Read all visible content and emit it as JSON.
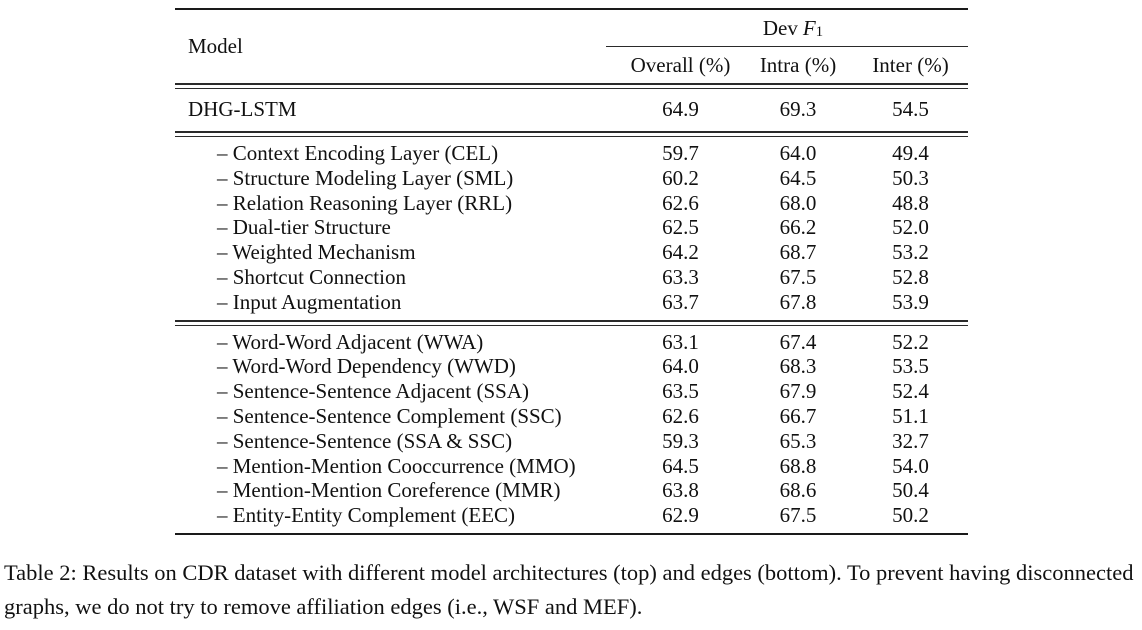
{
  "table": {
    "header": {
      "model_label": "Model",
      "group_label_dev": "Dev",
      "group_label_f": "F",
      "group_label_sub": "1",
      "columns": [
        "Overall (%)",
        "Intra (%)",
        "Inter (%)"
      ]
    },
    "base_rows": [
      {
        "model": "DHG-LSTM",
        "values": [
          "64.9",
          "69.3",
          "54.5"
        ]
      }
    ],
    "architecture_rows": [
      {
        "model": "– Context Encoding Layer (CEL)",
        "values": [
          "59.7",
          "64.0",
          "49.4"
        ]
      },
      {
        "model": "– Structure Modeling Layer (SML)",
        "values": [
          "60.2",
          "64.5",
          "50.3"
        ]
      },
      {
        "model": "– Relation Reasoning Layer (RRL)",
        "values": [
          "62.6",
          "68.0",
          "48.8"
        ]
      },
      {
        "model": "– Dual-tier Structure",
        "values": [
          "62.5",
          "66.2",
          "52.0"
        ]
      },
      {
        "model": "– Weighted Mechanism",
        "values": [
          "64.2",
          "68.7",
          "53.2"
        ]
      },
      {
        "model": "– Shortcut Connection",
        "values": [
          "63.3",
          "67.5",
          "52.8"
        ]
      },
      {
        "model": "– Input Augmentation",
        "values": [
          "63.7",
          "67.8",
          "53.9"
        ]
      }
    ],
    "edge_rows": [
      {
        "model": "– Word-Word Adjacent (WWA)",
        "values": [
          "63.1",
          "67.4",
          "52.2"
        ]
      },
      {
        "model": "– Word-Word Dependency (WWD)",
        "values": [
          "64.0",
          "68.3",
          "53.5"
        ]
      },
      {
        "model": "– Sentence-Sentence Adjacent (SSA)",
        "values": [
          "63.5",
          "67.9",
          "52.4"
        ]
      },
      {
        "model": "– Sentence-Sentence Complement (SSC)",
        "values": [
          "62.6",
          "66.7",
          "51.1"
        ]
      },
      {
        "model": "– Sentence-Sentence (SSA & SSC)",
        "values": [
          "59.3",
          "65.3",
          "32.7"
        ]
      },
      {
        "model": "– Mention-Mention Cooccurrence (MMO)",
        "values": [
          "64.5",
          "68.8",
          "54.0"
        ]
      },
      {
        "model": "– Mention-Mention Coreference (MMR)",
        "values": [
          "63.8",
          "68.6",
          "50.4"
        ]
      },
      {
        "model": "– Entity-Entity Complement (EEC)",
        "values": [
          "62.9",
          "67.5",
          "50.2"
        ]
      }
    ]
  },
  "caption": {
    "text": "Table 2: Results on CDR dataset with different model architectures (top) and edges (bottom). To prevent having disconnected graphs, we do not try to remove affiliation edges (i.e., WSF and MEF)."
  },
  "colors": {
    "text": "#111111",
    "rule": "#1a1a1a",
    "background": "#ffffff"
  }
}
